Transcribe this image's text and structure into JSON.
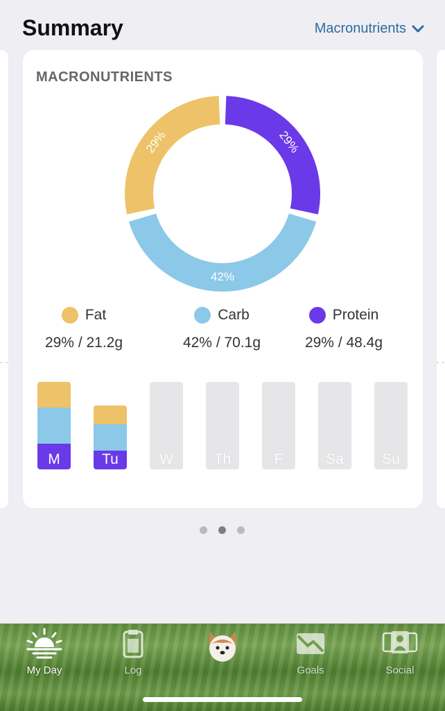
{
  "header": {
    "title": "Summary",
    "selector_label": "Macronutrients"
  },
  "card": {
    "title": "MACRONUTRIENTS",
    "donut": [
      {
        "name": "Fat",
        "percent_label": "29%",
        "color": "#EDC268"
      },
      {
        "name": "Protein",
        "percent_label": "29%",
        "color": "#6A3AE8"
      },
      {
        "name": "Carb",
        "percent_label": "42%",
        "color": "#8CC8E8"
      }
    ],
    "legend": [
      {
        "name": "Fat",
        "value": "29% / 21.2g",
        "color": "#EDC268"
      },
      {
        "name": "Carb",
        "value": "42% / 70.1g",
        "color": "#8CC8E8"
      },
      {
        "name": "Protein",
        "value": "29% / 48.4g",
        "color": "#6A3AE8"
      }
    ],
    "days": [
      {
        "label": "M",
        "fill": 1.0,
        "fat": 0.29,
        "carb": 0.42,
        "protein": 0.29
      },
      {
        "label": "Tu",
        "fill": 0.73,
        "fat": 0.29,
        "carb": 0.42,
        "protein": 0.29
      },
      {
        "label": "W",
        "fill": 0
      },
      {
        "label": "Th",
        "fill": 0
      },
      {
        "label": "F",
        "fill": 0
      },
      {
        "label": "Sa",
        "fill": 0
      },
      {
        "label": "Su",
        "fill": 0
      }
    ]
  },
  "pager": {
    "count": 3,
    "active": 1
  },
  "tabs": [
    {
      "label": "My Day",
      "icon": "sunrise-icon",
      "active": true
    },
    {
      "label": "Log",
      "icon": "clipboard-icon",
      "active": false
    },
    {
      "label": "",
      "icon": "dog-mascot-icon",
      "active": false
    },
    {
      "label": "Goals",
      "icon": "chart-down-icon",
      "active": false
    },
    {
      "label": "Social",
      "icon": "people-icon",
      "active": false
    }
  ]
}
